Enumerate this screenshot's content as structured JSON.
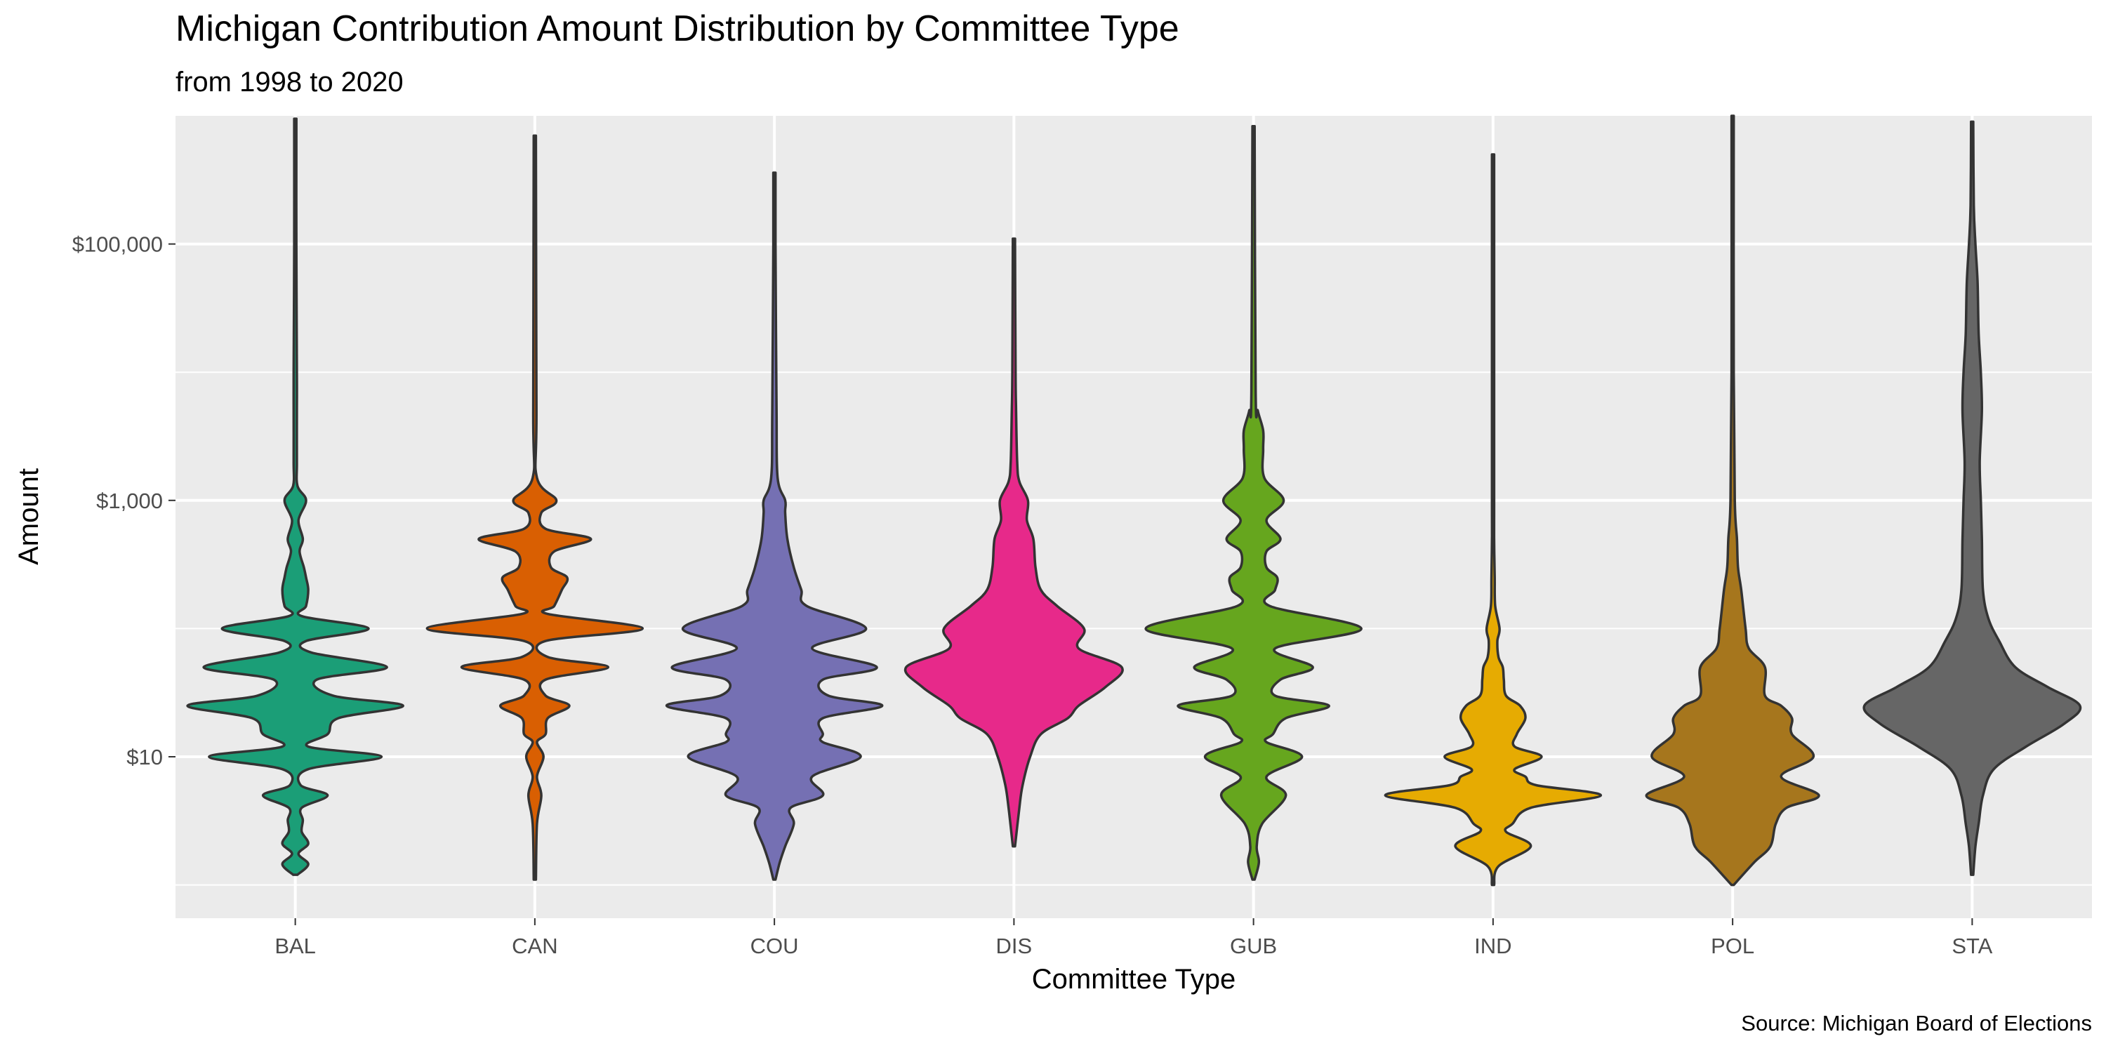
{
  "chart_data": {
    "type": "violin",
    "title": "Michigan Contribution Amount Distribution by Committee Type",
    "subtitle": "from 1998 to 2020",
    "xlabel": "Committee Type",
    "ylabel": "Amount",
    "caption": "Source: Michigan Board of Elections",
    "y_scale": "log10",
    "ylim": [
      0.55,
      1000000
    ],
    "y_ticks": [
      10,
      1000,
      100000
    ],
    "y_tick_labels": [
      "$10",
      "$1,000",
      "$100,000"
    ],
    "y_minor_ticks": [
      1,
      100,
      10000
    ],
    "categories": [
      "BAL",
      "CAN",
      "COU",
      "DIS",
      "GUB",
      "IND",
      "POL",
      "STA"
    ],
    "series": [
      {
        "name": "BAL",
        "color": "#1B9E77",
        "min": 1.2,
        "max": 950000,
        "profile": [
          [
            1.2,
            0.02
          ],
          [
            1.45,
            0.12
          ],
          [
            1.75,
            0.03
          ],
          [
            2.1,
            0.12
          ],
          [
            2.6,
            0.06
          ],
          [
            3.2,
            0.07
          ],
          [
            4.0,
            0.06
          ],
          [
            5,
            0.3
          ],
          [
            6,
            0.05
          ],
          [
            8,
            0.12
          ],
          [
            10,
            0.8
          ],
          [
            12,
            0.12
          ],
          [
            15,
            0.3
          ],
          [
            20,
            0.4
          ],
          [
            25,
            1.0
          ],
          [
            30,
            0.35
          ],
          [
            40,
            0.2
          ],
          [
            50,
            0.85
          ],
          [
            65,
            0.15
          ],
          [
            80,
            0.1
          ],
          [
            100,
            0.68
          ],
          [
            125,
            0.06
          ],
          [
            150,
            0.1
          ],
          [
            200,
            0.12
          ],
          [
            250,
            0.1
          ],
          [
            300,
            0.08
          ],
          [
            400,
            0.04
          ],
          [
            500,
            0.07
          ],
          [
            700,
            0.03
          ],
          [
            1000,
            0.1
          ],
          [
            1300,
            0.02
          ],
          [
            2000,
            0.015
          ],
          [
            5000,
            0.015
          ],
          [
            10000,
            0.015
          ],
          [
            100000,
            0.01
          ],
          [
            950000,
            0.01
          ]
        ]
      },
      {
        "name": "CAN",
        "color": "#D95F02",
        "min": 1.1,
        "max": 700000,
        "profile": [
          [
            1.1,
            0.01
          ],
          [
            3,
            0.02
          ],
          [
            5,
            0.06
          ],
          [
            7,
            0.02
          ],
          [
            10,
            0.08
          ],
          [
            13,
            0.02
          ],
          [
            15,
            0.1
          ],
          [
            20,
            0.12
          ],
          [
            25,
            0.32
          ],
          [
            30,
            0.1
          ],
          [
            40,
            0.1
          ],
          [
            50,
            0.68
          ],
          [
            60,
            0.12
          ],
          [
            80,
            0.1
          ],
          [
            100,
            1.0
          ],
          [
            130,
            0.12
          ],
          [
            150,
            0.18
          ],
          [
            200,
            0.25
          ],
          [
            250,
            0.3
          ],
          [
            300,
            0.15
          ],
          [
            400,
            0.18
          ],
          [
            500,
            0.52
          ],
          [
            600,
            0.1
          ],
          [
            800,
            0.06
          ],
          [
            1000,
            0.2
          ],
          [
            1500,
            0.02
          ],
          [
            5000,
            0.015
          ],
          [
            700000,
            0.01
          ]
        ]
      },
      {
        "name": "COU",
        "color": "#7570B3",
        "min": 1.1,
        "max": 360000,
        "profile": [
          [
            1.1,
            0.01
          ],
          [
            1.5,
            0.05
          ],
          [
            2,
            0.1
          ],
          [
            3,
            0.18
          ],
          [
            4,
            0.15
          ],
          [
            5,
            0.45
          ],
          [
            7,
            0.35
          ],
          [
            10,
            0.8
          ],
          [
            13,
            0.45
          ],
          [
            15,
            0.45
          ],
          [
            20,
            0.45
          ],
          [
            25,
            1.0
          ],
          [
            30,
            0.5
          ],
          [
            40,
            0.45
          ],
          [
            50,
            0.95
          ],
          [
            70,
            0.35
          ],
          [
            100,
            0.85
          ],
          [
            150,
            0.3
          ],
          [
            200,
            0.25
          ],
          [
            300,
            0.18
          ],
          [
            500,
            0.12
          ],
          [
            800,
            0.1
          ],
          [
            1000,
            0.1
          ],
          [
            1500,
            0.03
          ],
          [
            5000,
            0.02
          ],
          [
            100000,
            0.01
          ],
          [
            360000,
            0.01
          ]
        ]
      },
      {
        "name": "DIS",
        "color": "#E7298A",
        "min": 2.0,
        "max": 110000,
        "profile": [
          [
            2,
            0.01
          ],
          [
            4,
            0.05
          ],
          [
            6,
            0.08
          ],
          [
            10,
            0.15
          ],
          [
            15,
            0.25
          ],
          [
            20,
            0.5
          ],
          [
            25,
            0.6
          ],
          [
            35,
            0.85
          ],
          [
            50,
            1.0
          ],
          [
            70,
            0.6
          ],
          [
            100,
            0.65
          ],
          [
            150,
            0.4
          ],
          [
            200,
            0.25
          ],
          [
            300,
            0.2
          ],
          [
            500,
            0.18
          ],
          [
            700,
            0.12
          ],
          [
            1000,
            0.13
          ],
          [
            1400,
            0.05
          ],
          [
            2000,
            0.03
          ],
          [
            5000,
            0.02
          ],
          [
            10000,
            0.015
          ],
          [
            110000,
            0.01
          ]
        ]
      },
      {
        "name": "GUB",
        "color": "#66A61E",
        "min": 1.1,
        "max": 830000,
        "profile": [
          [
            1.1,
            0.01
          ],
          [
            1.5,
            0.05
          ],
          [
            2,
            0.03
          ],
          [
            3,
            0.08
          ],
          [
            5,
            0.3
          ],
          [
            7,
            0.12
          ],
          [
            10,
            0.45
          ],
          [
            13,
            0.12
          ],
          [
            15,
            0.18
          ],
          [
            20,
            0.3
          ],
          [
            25,
            0.7
          ],
          [
            30,
            0.2
          ],
          [
            40,
            0.25
          ],
          [
            50,
            0.55
          ],
          [
            70,
            0.2
          ],
          [
            100,
            1.0
          ],
          [
            150,
            0.15
          ],
          [
            200,
            0.2
          ],
          [
            250,
            0.22
          ],
          [
            300,
            0.12
          ],
          [
            400,
            0.12
          ],
          [
            500,
            0.25
          ],
          [
            700,
            0.12
          ],
          [
            1000,
            0.28
          ],
          [
            1500,
            0.1
          ],
          [
            2500,
            0.09
          ],
          [
            3500,
            0.09
          ],
          [
            5000,
            0.04
          ],
          [
            7000,
            0.02
          ],
          [
            830000,
            0.01
          ]
        ]
      },
      {
        "name": "IND",
        "color": "#E6AB02",
        "min": 1.0,
        "max": 500000,
        "profile": [
          [
            1,
            0.01
          ],
          [
            1.4,
            0.05
          ],
          [
            2,
            0.35
          ],
          [
            2.6,
            0.12
          ],
          [
            3,
            0.18
          ],
          [
            4,
            0.35
          ],
          [
            5,
            1.0
          ],
          [
            6,
            0.4
          ],
          [
            7,
            0.3
          ],
          [
            8,
            0.2
          ],
          [
            10,
            0.45
          ],
          [
            12,
            0.2
          ],
          [
            15,
            0.22
          ],
          [
            20,
            0.3
          ],
          [
            25,
            0.25
          ],
          [
            30,
            0.12
          ],
          [
            40,
            0.1
          ],
          [
            50,
            0.09
          ],
          [
            60,
            0.05
          ],
          [
            80,
            0.04
          ],
          [
            100,
            0.06
          ],
          [
            150,
            0.02
          ],
          [
            250,
            0.015
          ],
          [
            500,
            0.01
          ],
          [
            1000,
            0.01
          ],
          [
            500000,
            0.01
          ]
        ]
      },
      {
        "name": "POL",
        "color": "#A6761D",
        "min": 1.0,
        "max": 1000000,
        "profile": [
          [
            1,
            0.01
          ],
          [
            1.5,
            0.2
          ],
          [
            2,
            0.35
          ],
          [
            3,
            0.4
          ],
          [
            4,
            0.5
          ],
          [
            5,
            0.8
          ],
          [
            7,
            0.45
          ],
          [
            10,
            0.75
          ],
          [
            15,
            0.55
          ],
          [
            20,
            0.55
          ],
          [
            25,
            0.45
          ],
          [
            30,
            0.3
          ],
          [
            50,
            0.3
          ],
          [
            70,
            0.15
          ],
          [
            100,
            0.12
          ],
          [
            200,
            0.08
          ],
          [
            300,
            0.05
          ],
          [
            500,
            0.04
          ],
          [
            1000,
            0.02
          ],
          [
            10000,
            0.01
          ],
          [
            1000000,
            0.01
          ]
        ]
      },
      {
        "name": "STA",
        "color": "#666666",
        "min": 1.2,
        "max": 900000,
        "profile": [
          [
            1.2,
            0.01
          ],
          [
            2,
            0.03
          ],
          [
            3,
            0.06
          ],
          [
            5,
            0.1
          ],
          [
            8,
            0.2
          ],
          [
            12,
            0.5
          ],
          [
            18,
            0.85
          ],
          [
            25,
            1.0
          ],
          [
            35,
            0.7
          ],
          [
            50,
            0.4
          ],
          [
            80,
            0.25
          ],
          [
            120,
            0.15
          ],
          [
            200,
            0.1
          ],
          [
            500,
            0.09
          ],
          [
            1000,
            0.08
          ],
          [
            2000,
            0.07
          ],
          [
            5000,
            0.09
          ],
          [
            10000,
            0.08
          ],
          [
            20000,
            0.06
          ],
          [
            50000,
            0.05
          ],
          [
            100000,
            0.03
          ],
          [
            200000,
            0.015
          ],
          [
            900000,
            0.01
          ]
        ]
      }
    ]
  }
}
